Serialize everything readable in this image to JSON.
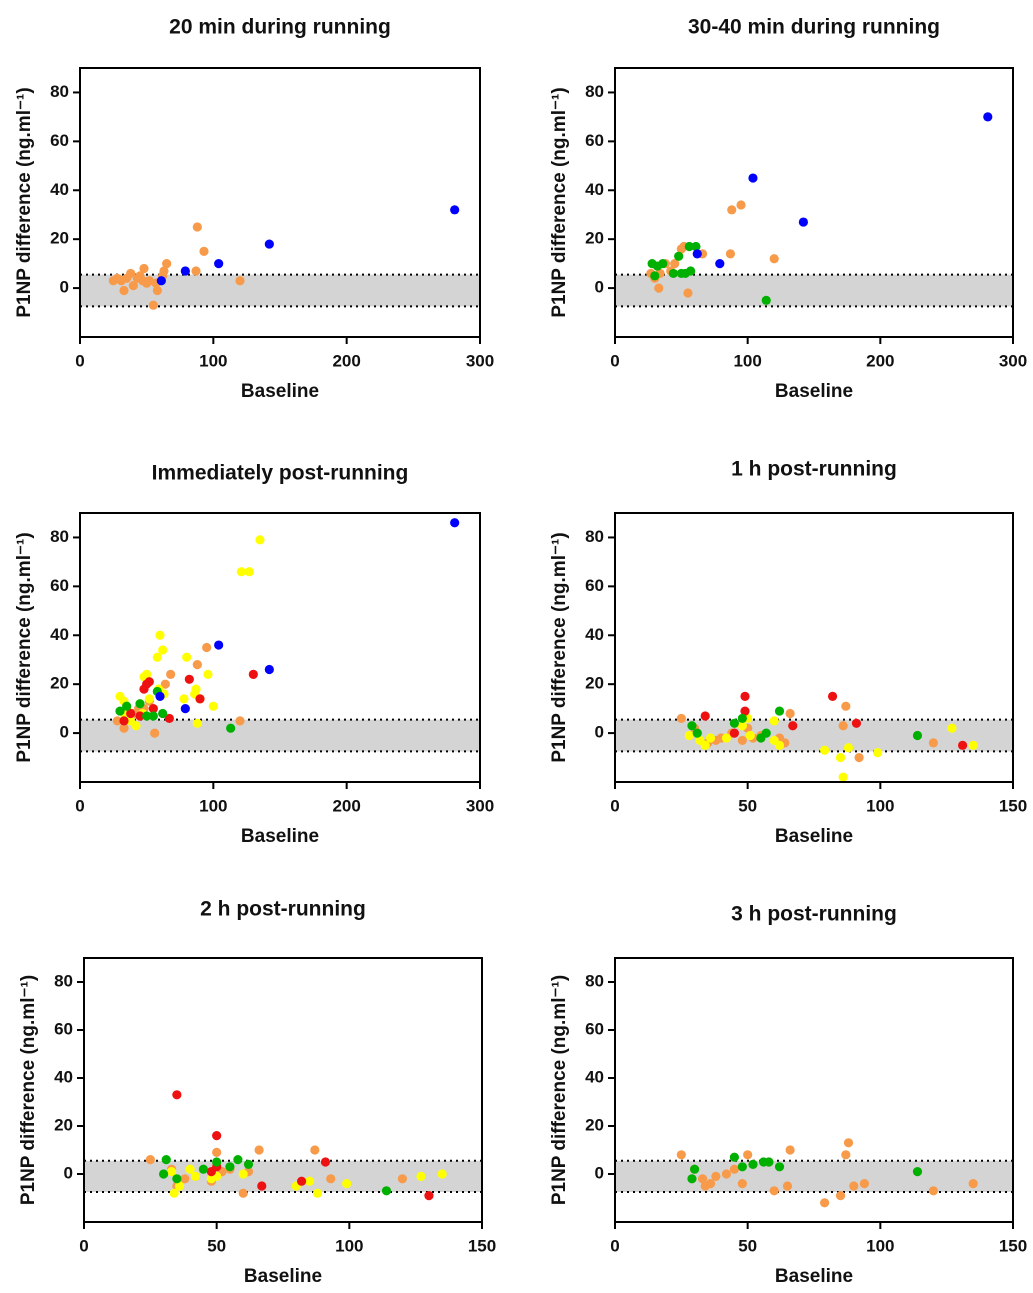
{
  "chart_data": [
    {
      "type": "scatter",
      "title": "20 min during running",
      "x_label": "Baseline",
      "y_label": "P1NP difference (ng.ml⁻¹)",
      "xlim": [
        0,
        300
      ],
      "xticks": [
        0,
        100,
        200,
        300
      ],
      "ylim": [
        -20,
        90
      ],
      "yticks": [
        0,
        20,
        40,
        60,
        80
      ],
      "band": [
        -7.5,
        5.5
      ],
      "series": [
        {
          "color": "#f79a4a",
          "x": [
            25,
            28,
            31,
            33,
            35,
            38,
            40,
            43,
            45,
            47,
            48,
            50,
            52,
            55,
            57,
            58,
            62,
            65,
            63,
            88,
            87,
            93,
            120
          ],
          "values": [
            3,
            4,
            3,
            -1,
            4,
            6,
            1,
            4,
            5,
            3,
            8,
            2,
            3,
            -7,
            2,
            -1,
            5,
            10,
            7,
            25,
            7,
            15,
            3
          ]
        },
        {
          "color": "#0000ff",
          "x": [
            61,
            79,
            104,
            142,
            281
          ],
          "values": [
            3,
            7,
            10,
            18,
            32
          ]
        }
      ]
    },
    {
      "type": "scatter",
      "title": "30-40 min during running",
      "x_label": "Baseline",
      "y_label": "P1NP difference (ng.ml⁻¹)",
      "xlim": [
        0,
        300
      ],
      "xticks": [
        0,
        100,
        200,
        300
      ],
      "ylim": [
        -20,
        90
      ],
      "yticks": [
        0,
        20,
        40,
        60,
        80
      ],
      "band": [
        -7.5,
        5.5
      ],
      "series": [
        {
          "color": "#f79a4a",
          "x": [
            27,
            30,
            33,
            38,
            45,
            50,
            52,
            55,
            66,
            87,
            88,
            95,
            120,
            34,
            42
          ],
          "values": [
            6,
            4,
            0,
            10,
            10,
            16,
            17,
            -2,
            14,
            14,
            32,
            34,
            12,
            6,
            7
          ]
        },
        {
          "color": "#00b000",
          "x": [
            28,
            30,
            32,
            36,
            44,
            48,
            50,
            53,
            56,
            57,
            61,
            114
          ],
          "values": [
            10,
            5,
            9,
            10,
            6,
            13,
            6,
            6,
            17,
            7,
            17,
            -5
          ]
        },
        {
          "color": "#0000ff",
          "x": [
            62,
            79,
            104,
            142,
            281
          ],
          "values": [
            14,
            10,
            45,
            27,
            70
          ]
        }
      ]
    },
    {
      "type": "scatter",
      "title": "Immediately post-running",
      "x_label": "Baseline",
      "y_label": "P1NP difference (ng.ml⁻¹)",
      "xlim": [
        0,
        300
      ],
      "xticks": [
        0,
        100,
        200,
        300
      ],
      "ylim": [
        -20,
        90
      ],
      "yticks": [
        0,
        20,
        40,
        60,
        80
      ],
      "band": [
        -7.5,
        5.5
      ],
      "series": [
        {
          "color": "#f79a4a",
          "x": [
            28,
            33,
            40,
            44,
            48,
            56,
            64,
            68,
            88,
            95,
            120,
            52
          ],
          "values": [
            5,
            2,
            8,
            10,
            10,
            0,
            20,
            24,
            28,
            35,
            5,
            13
          ]
        },
        {
          "color": "#ffff00",
          "x": [
            30,
            33,
            35,
            38,
            42,
            47,
            48,
            50,
            52,
            58,
            59,
            60,
            62,
            63,
            78,
            80,
            86,
            87,
            88,
            90,
            96,
            100,
            121,
            127,
            135,
            33,
            45
          ],
          "values": [
            15,
            13,
            10,
            5,
            3,
            8,
            23,
            24,
            14,
            31,
            18,
            40,
            34,
            16,
            14,
            31,
            16,
            18,
            4,
            14,
            24,
            11,
            66,
            66,
            79,
            8,
            12
          ]
        },
        {
          "color": "#ee1111",
          "x": [
            33,
            38,
            45,
            48,
            50,
            52,
            55,
            67,
            82,
            90,
            130
          ],
          "values": [
            5,
            8,
            7,
            18,
            20,
            21,
            10,
            6,
            22,
            14,
            24
          ]
        },
        {
          "color": "#00b000",
          "x": [
            30,
            35,
            45,
            50,
            55,
            58,
            62,
            113
          ],
          "values": [
            9,
            11,
            12,
            7,
            7,
            17,
            8,
            2
          ]
        },
        {
          "color": "#0000ff",
          "x": [
            60,
            79,
            104,
            142,
            281
          ],
          "values": [
            15,
            10,
            36,
            26,
            86
          ]
        }
      ]
    },
    {
      "type": "scatter",
      "title": "1 h post-running",
      "x_label": "Baseline",
      "y_label": "P1NP difference (ng.ml⁻¹)",
      "xlim": [
        0,
        150
      ],
      "xticks": [
        0,
        50,
        100,
        150
      ],
      "ylim": [
        -20,
        90
      ],
      "yticks": [
        0,
        20,
        40,
        60,
        80
      ],
      "band": [
        -7.5,
        5.5
      ],
      "series": [
        {
          "color": "#f79a4a",
          "x": [
            25,
            30,
            35,
            38,
            40,
            44,
            48,
            50,
            52,
            55,
            62,
            64,
            66,
            86,
            87,
            92,
            120
          ],
          "values": [
            6,
            2,
            -4,
            -3,
            -2,
            0,
            -3,
            2,
            -2,
            -1,
            -2,
            -4,
            8,
            3,
            11,
            -10,
            -4
          ]
        },
        {
          "color": "#ffff00",
          "x": [
            28,
            32,
            34,
            36,
            42,
            48,
            50,
            51,
            60,
            60,
            62,
            79,
            85,
            86,
            88,
            99,
            127,
            135
          ],
          "values": [
            -1,
            -3,
            -5,
            -2,
            -2,
            3,
            6,
            -1,
            5,
            -3,
            -5,
            -7,
            -10,
            -18,
            -6,
            -8,
            2,
            -5
          ]
        },
        {
          "color": "#ee1111",
          "x": [
            34,
            45,
            49,
            49,
            67,
            82,
            91,
            131
          ],
          "values": [
            7,
            0,
            9,
            15,
            3,
            15,
            4,
            -5
          ]
        },
        {
          "color": "#00b000",
          "x": [
            29,
            31,
            45,
            48,
            55,
            57,
            62,
            114
          ],
          "values": [
            3,
            0,
            4,
            6,
            -2,
            0,
            9,
            -1
          ]
        }
      ]
    },
    {
      "type": "scatter",
      "title": "2 h post-running",
      "x_label": "Baseline",
      "y_label": "P1NP difference (ng.ml⁻¹)",
      "xlim": [
        0,
        150
      ],
      "xticks": [
        0,
        50,
        100,
        150
      ],
      "ylim": [
        -20,
        90
      ],
      "yticks": [
        0,
        20,
        40,
        60,
        80
      ],
      "band": [
        -7.5,
        5.5
      ],
      "series": [
        {
          "color": "#f79a4a",
          "x": [
            25,
            33,
            35,
            38,
            42,
            48,
            50,
            52,
            55,
            60,
            62,
            66,
            87,
            93,
            120
          ],
          "values": [
            6,
            2,
            -5,
            -2,
            -1,
            -3,
            9,
            1,
            2,
            -8,
            1,
            10,
            10,
            -2,
            -2
          ]
        },
        {
          "color": "#ffff00",
          "x": [
            33,
            34,
            36,
            40,
            42,
            48,
            50,
            60,
            80,
            85,
            88,
            99,
            127,
            135
          ],
          "values": [
            1,
            -8,
            -5,
            2,
            -1,
            -2,
            -1,
            0,
            -5,
            -3,
            -8,
            -4,
            -1,
            0
          ]
        },
        {
          "color": "#ee1111",
          "x": [
            35,
            50,
            48,
            50,
            67,
            82,
            91,
            130
          ],
          "values": [
            33,
            16,
            1,
            3,
            -5,
            -3,
            5,
            -9
          ]
        },
        {
          "color": "#00b000",
          "x": [
            30,
            31,
            35,
            45,
            50,
            55,
            58,
            62,
            114
          ],
          "values": [
            0,
            6,
            -2,
            2,
            5,
            3,
            6,
            4,
            -7
          ]
        }
      ]
    },
    {
      "type": "scatter",
      "title": "3 h post-running",
      "x_label": "Baseline",
      "y_label": "P1NP difference (ng.ml⁻¹)",
      "xlim": [
        0,
        150
      ],
      "xticks": [
        0,
        50,
        100,
        150
      ],
      "ylim": [
        -20,
        90
      ],
      "yticks": [
        0,
        20,
        40,
        60,
        80
      ],
      "band": [
        -7.5,
        5.5
      ],
      "series": [
        {
          "color": "#f79a4a",
          "x": [
            25,
            30,
            33,
            34,
            36,
            38,
            42,
            45,
            48,
            50,
            52,
            58,
            60,
            65,
            66,
            79,
            85,
            87,
            88,
            90,
            94,
            120,
            135
          ],
          "values": [
            8,
            2,
            -2,
            -5,
            -4,
            -1,
            0,
            2,
            -4,
            8,
            4,
            5,
            -7,
            -5,
            10,
            -12,
            -9,
            8,
            13,
            -5,
            -4,
            -7,
            -4
          ]
        },
        {
          "color": "#00b000",
          "x": [
            29,
            30,
            45,
            48,
            52,
            56,
            58,
            62,
            114
          ],
          "values": [
            -2,
            2,
            7,
            3,
            4,
            5,
            5,
            3,
            1
          ]
        }
      ]
    }
  ]
}
